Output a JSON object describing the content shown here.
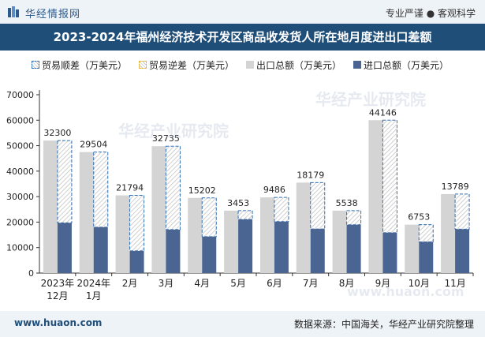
{
  "header": {
    "brand": "华经情报网",
    "tagline": "专业严谨 ● 客观科学"
  },
  "title": "2023-2024年福州经济技术开发区商品收发货人所在地月度进出口差额",
  "legend": [
    {
      "label": "贸易顺差（万美元）",
      "style": "surplus"
    },
    {
      "label": "贸易逆差（万美元）",
      "style": "deficit"
    },
    {
      "label": "出口总额（万美元）",
      "style": "export"
    },
    {
      "label": "进口总额（万美元）",
      "style": "import"
    }
  ],
  "colors": {
    "export": "#d4d4d4",
    "import": "#4a6591",
    "surplus_line": "#2e6fb5",
    "deficit_line": "#e5b53b",
    "title_bg": "#1f4e79",
    "axis": "#333333"
  },
  "watermarks": [
    "华经产业研究院",
    "华经产业研究院",
    "www.huaon.com"
  ],
  "chart_data": {
    "type": "bar",
    "categories": [
      [
        "2023年",
        "12月"
      ],
      [
        "2024年",
        "1月"
      ],
      [
        "2月"
      ],
      [
        "3月"
      ],
      [
        "4月"
      ],
      [
        "5月"
      ],
      [
        "6月"
      ],
      [
        "7月"
      ],
      [
        "8月"
      ],
      [
        "9月"
      ],
      [
        "10月"
      ],
      [
        "11月"
      ]
    ],
    "ylim": [
      0,
      70000
    ],
    "yticks": [
      0,
      10000,
      20000,
      30000,
      40000,
      50000,
      60000,
      70000
    ],
    "series": [
      {
        "name": "出口总额（万美元）",
        "values": [
          52000,
          47500,
          30500,
          49800,
          29500,
          24500,
          29700,
          35500,
          24500,
          60000,
          19000,
          31000
        ]
      },
      {
        "name": "进口总额（万美元）",
        "values": [
          19700,
          18000,
          8700,
          17065,
          14298,
          21047,
          20214,
          17321,
          18962,
          15854,
          12247,
          17211
        ]
      },
      {
        "name": "贸易顺差（万美元）",
        "values": [
          32300,
          29504,
          21794,
          32735,
          15202,
          3453,
          9486,
          18179,
          5538,
          44146,
          6753,
          13789
        ]
      }
    ],
    "data_labels": [
      "32300",
      "29504",
      "21794",
      "32735",
      "15202",
      "3453",
      "9486",
      "18179",
      "5538",
      "44146",
      "6753",
      "13789"
    ]
  },
  "footer": {
    "website": "www.huaon.com",
    "source": "数据来源：中国海关，华经产业研究院整理"
  }
}
